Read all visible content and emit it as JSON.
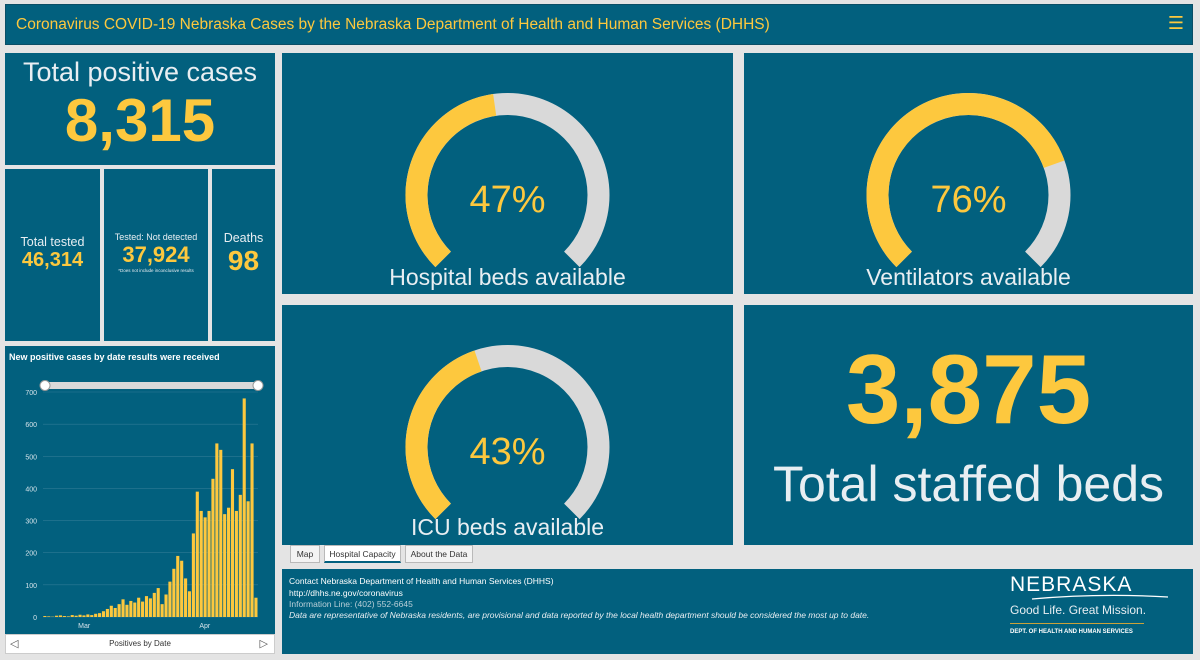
{
  "header": {
    "title": "Coronavirus COVID-19 Nebraska Cases by the Nebraska Department of Health and Human Services (DHHS)",
    "menu_icon": "hamburger-menu-icon"
  },
  "totals": {
    "positive_label": "Total positive cases",
    "positive_value": "8,315",
    "tested_label": "Total tested",
    "tested_value": "46,314",
    "not_detected_label": "Tested: Not detected",
    "not_detected_value": "37,924",
    "not_detected_note": "*Does not include inconclusive results",
    "deaths_label": "Deaths",
    "deaths_value": "98"
  },
  "gauges": {
    "hospital": {
      "percent": 47,
      "text": "47%",
      "label": "Hospital beds available"
    },
    "ventilators": {
      "percent": 76,
      "text": "76%",
      "label": "Ventilators available"
    },
    "icu": {
      "percent": 43,
      "text": "43%",
      "label": "ICU beds available"
    }
  },
  "staffed_beds": {
    "value": "3,875",
    "label": "Total staffed beds"
  },
  "tabs": [
    "Map",
    "Hospital Capacity",
    "About the Data"
  ],
  "active_tab": "Hospital Capacity",
  "footer": {
    "contact": "Contact Nebraska Department of Health and Human Services (DHHS)",
    "url": "http://dhhs.ne.gov/coronavirus",
    "phone": "Information Line: (402) 552-6645",
    "disclaimer": "Data are representative of Nebraska residents, are provisional and data reported by the local health department should be considered the most up to date.",
    "logo_name": "NEBRASKA",
    "logo_tagline": "Good Life. Great Mission.",
    "logo_dept": "DEPT. OF HEALTH AND HUMAN SERVICES"
  },
  "colors": {
    "panel": "#02607e",
    "accent": "#fdc83e",
    "track": "#d9d9d9",
    "background": "#e4e4e4"
  },
  "chart_data": {
    "type": "bar",
    "title": "New positive cases by date results were received",
    "footer_label": "Positives by Date",
    "ylim": [
      0,
      700
    ],
    "yticks": [
      0,
      100,
      200,
      300,
      400,
      500,
      600,
      700
    ],
    "xtick_labels": [
      {
        "label": "Mar",
        "index": 9
      },
      {
        "label": "Apr",
        "index": 40
      }
    ],
    "values": [
      3,
      2,
      1,
      4,
      5,
      3,
      2,
      6,
      4,
      7,
      5,
      8,
      6,
      10,
      12,
      18,
      25,
      35,
      28,
      40,
      55,
      38,
      50,
      45,
      60,
      48,
      65,
      58,
      75,
      90,
      40,
      70,
      110,
      150,
      190,
      175,
      120,
      80,
      260,
      390,
      330,
      310,
      330,
      430,
      540,
      520,
      320,
      340,
      460,
      330,
      380,
      680,
      360,
      540,
      60
    ]
  }
}
